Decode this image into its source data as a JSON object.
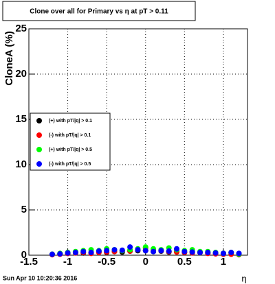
{
  "chart_data": {
    "type": "scatter",
    "title": "Clone  over all for Primary vs   η at pT > 0.11",
    "x_label": "η",
    "y_label": "CloneA (%)",
    "timestamp": "Sun Apr 10 10:20:36 2016",
    "xlim": [
      -1.5,
      1.31
    ],
    "ylim": [
      0,
      25
    ],
    "xticks": [
      -1.5,
      -1,
      -0.5,
      0,
      0.5,
      1
    ],
    "yticks": [
      0,
      5,
      10,
      15,
      20,
      25
    ],
    "grid": true,
    "legend": "left",
    "x": [
      -1.2,
      -1.1,
      -1.0,
      -0.9,
      -0.8,
      -0.7,
      -0.6,
      -0.5,
      -0.4,
      -0.3,
      -0.2,
      -0.1,
      0.0,
      0.1,
      0.2,
      0.3,
      0.4,
      0.5,
      0.6,
      0.7,
      0.8,
      0.9,
      1.0,
      1.1,
      1.2
    ],
    "series": [
      {
        "name": "(+) with pT/|q| > 0.1",
        "color": "#000000",
        "values": [
          0.1,
          0.15,
          0.2,
          0.3,
          0.25,
          0.3,
          0.35,
          0.3,
          0.4,
          0.35,
          0.45,
          0.5,
          0.5,
          0.4,
          0.45,
          0.35,
          0.4,
          0.3,
          0.35,
          0.3,
          0.25,
          0.2,
          0.2,
          0.25,
          0.15
        ]
      },
      {
        "name": "(-) with pT/|q| > 0.1",
        "color": "#ff0000",
        "values": [
          0.05,
          0.1,
          0.2,
          0.25,
          0.3,
          0.2,
          0.3,
          0.35,
          0.4,
          0.5,
          0.45,
          0.6,
          0.8,
          0.6,
          0.5,
          0.4,
          0.35,
          0.3,
          0.25,
          0.3,
          0.2,
          0.15,
          0.1,
          0.1,
          0.05
        ]
      },
      {
        "name": "(+) with pT/|q| > 0.5",
        "color": "#00ff00",
        "values": [
          0.1,
          0.2,
          0.3,
          0.4,
          0.5,
          0.6,
          0.5,
          0.7,
          0.6,
          0.5,
          0.6,
          0.7,
          0.9,
          0.7,
          0.6,
          0.8,
          0.6,
          0.5,
          0.6,
          0.4,
          0.4,
          0.3,
          0.2,
          0.3,
          0.1
        ]
      },
      {
        "name": "(-) with pT/|q| > 0.5",
        "color": "#0000ff",
        "values": [
          0.1,
          0.15,
          0.25,
          0.3,
          0.4,
          0.3,
          0.45,
          0.5,
          0.6,
          0.55,
          0.9,
          0.6,
          0.5,
          0.4,
          0.5,
          0.45,
          0.7,
          0.4,
          0.35,
          0.3,
          0.3,
          0.25,
          0.2,
          0.3,
          0.2
        ]
      }
    ]
  }
}
